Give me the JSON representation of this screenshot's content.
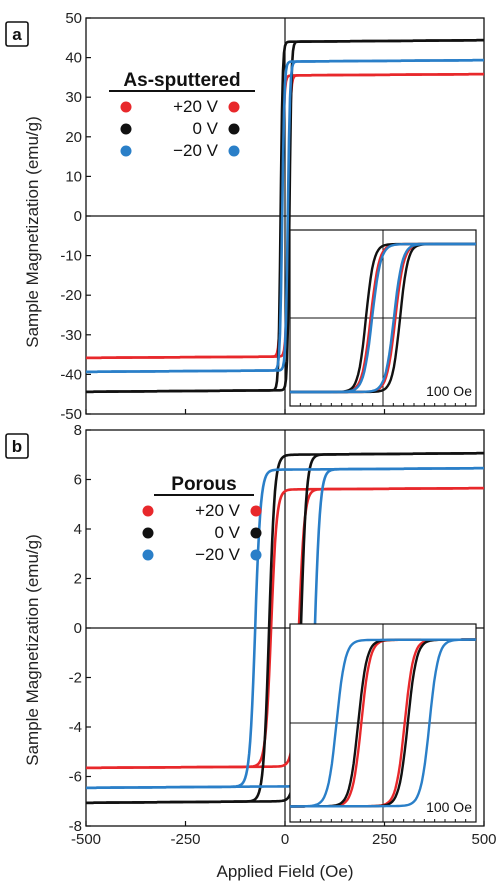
{
  "chart_data": {
    "type": "line",
    "xlabel": "Applied Field (Oe)",
    "ylabel": "Sample Magnetization (emu/g)",
    "xlim": [
      -500,
      500
    ],
    "xticks": [
      "-500",
      "-250",
      "0",
      "250",
      "500"
    ],
    "panels": [
      {
        "letter": "a",
        "legend_title": "As-sputtered",
        "ylim": [
          -50,
          50
        ],
        "yticks": [
          "50",
          "40",
          "30",
          "20",
          "10",
          "0",
          "-10",
          "-20",
          "-30",
          "-40",
          "-50"
        ],
        "inset_scale": "100 Oe",
        "series": [
          {
            "name": "+20 V",
            "color": "#e8282b",
            "ms": 35.5,
            "hc": 8,
            "w": 5.5
          },
          {
            "name": "0 V",
            "color": "#111111",
            "ms": 44.0,
            "hc": 11,
            "w": 5.0
          },
          {
            "name": "−20 V",
            "color": "#2a7fc8",
            "ms": 39.0,
            "hc": 7,
            "w": 5.5
          }
        ]
      },
      {
        "letter": "b",
        "legend_title": "Porous",
        "ylim": [
          -8,
          8
        ],
        "yticks": [
          "8",
          "6",
          "4",
          "2",
          "0",
          "-2",
          "-4",
          "-6",
          "-8"
        ],
        "inset_scale": "100 Oe",
        "series": [
          {
            "name": "+20 V",
            "color": "#e8282b",
            "ms": 5.6,
            "hc": 35,
            "w": 14
          },
          {
            "name": "0 V",
            "color": "#111111",
            "ms": 7.0,
            "hc": 40,
            "w": 14
          },
          {
            "name": "−20 V",
            "color": "#2a7fc8",
            "ms": 6.4,
            "hc": 75,
            "w": 14
          }
        ]
      }
    ]
  }
}
